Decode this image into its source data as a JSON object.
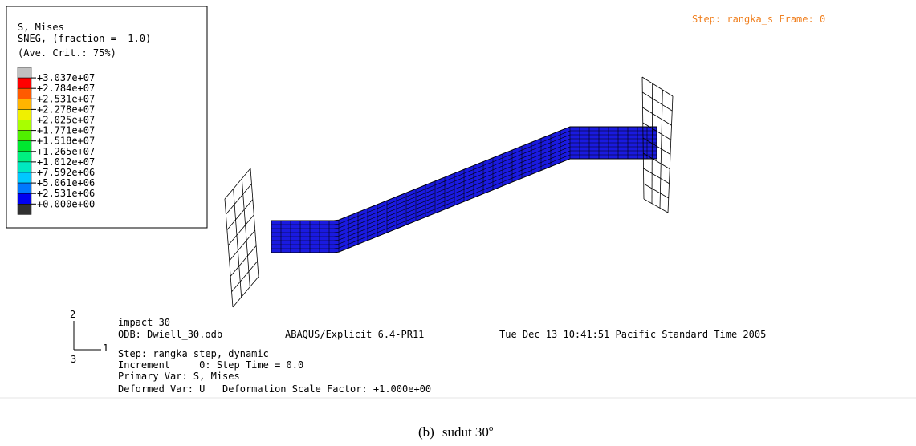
{
  "legend": {
    "title": [
      "S, Mises",
      "SNEG, (fraction = -1.0)",
      "(Ave. Crit.: 75%)"
    ],
    "labels": [
      "+3.037e+07",
      "+2.784e+07",
      "+2.531e+07",
      "+2.278e+07",
      "+2.025e+07",
      "+1.771e+07",
      "+1.518e+07",
      "+1.265e+07",
      "+1.012e+07",
      "+7.592e+06",
      "+5.061e+06",
      "+2.531e+06",
      "+0.000e+00"
    ],
    "colors": [
      "#c0c0c0",
      "#ff0000",
      "#ff5a00",
      "#ffb400",
      "#f0f000",
      "#a8ff00",
      "#50f000",
      "#00e830",
      "#00f080",
      "#00e8c0",
      "#00c8ff",
      "#0078ff",
      "#0000f0",
      "#303030"
    ]
  },
  "status": "Step: rangka_s Frame: 0",
  "triad": {
    "y": "2",
    "x": "1",
    "z": "3"
  },
  "info": {
    "title": "impact 30",
    "odb": "ODB: Dwiell_30.odb",
    "solver": "ABAQUS/Explicit 6.4-PR11",
    "date": "Tue Dec 13 10:41:51 Pacific Standard Time 2005",
    "step": "Step: rangka_step, dynamic",
    "increment": "Increment     0: Step Time = 0.0",
    "primary": "Primary Var: S, Mises",
    "deformed": "Deformed Var: U   Deformation Scale Factor: +1.000e+00"
  },
  "caption": {
    "label": "(b)",
    "text": "sudut 30",
    "superscript": "o"
  }
}
